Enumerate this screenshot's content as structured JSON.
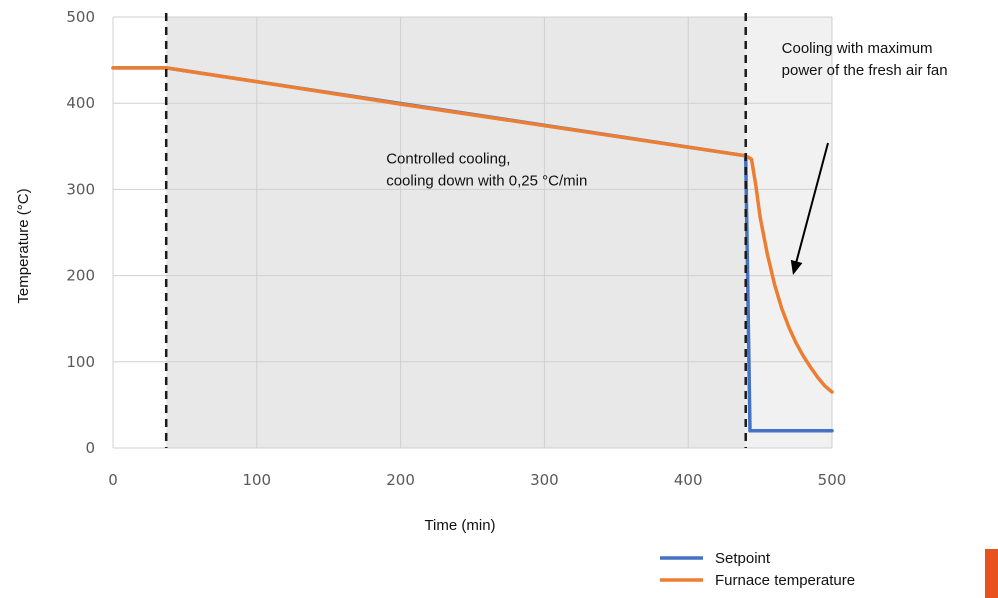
{
  "chart_data": {
    "type": "line",
    "title": "",
    "xlabel": "Time (min)",
    "ylabel": "Temperature (°C)",
    "xlim": [
      0,
      500
    ],
    "ylim": [
      0,
      500
    ],
    "xticks": [
      0,
      100,
      200,
      300,
      400,
      500
    ],
    "yticks": [
      0,
      100,
      200,
      300,
      400,
      500
    ],
    "grid": true,
    "legend_position": "bottom-right",
    "phase_markers_x": [
      37,
      440
    ],
    "shaded_phases": [
      {
        "from": 37,
        "to": 440,
        "color": "#e8e8e8"
      },
      {
        "from": 440,
        "to": 500,
        "color": "#f1f1f1"
      }
    ],
    "annotations": [
      {
        "lines": [
          "Controlled cooling,",
          "cooling down with 0,25 °C/min"
        ],
        "x": 190,
        "y": 330
      },
      {
        "lines": [
          "Cooling with maximum",
          "power of the fresh air fan"
        ],
        "x": 465,
        "y": 458
      }
    ],
    "series": [
      {
        "name": "Setpoint",
        "color": "#4472c4",
        "x": [
          0,
          37,
          440,
          440,
          443,
          500
        ],
        "y": [
          441,
          441,
          339,
          339,
          20,
          20
        ]
      },
      {
        "name": "Furnace temperature",
        "color": "#ed7d31",
        "x": [
          0,
          37,
          100,
          200,
          300,
          400,
          440,
          444,
          447,
          450,
          455,
          460,
          465,
          470,
          475,
          480,
          485,
          490,
          495,
          500
        ],
        "y": [
          441,
          441,
          425,
          399,
          374,
          349,
          339,
          335,
          305,
          268,
          225,
          190,
          162,
          140,
          122,
          107,
          94,
          82,
          72,
          65
        ]
      }
    ]
  }
}
